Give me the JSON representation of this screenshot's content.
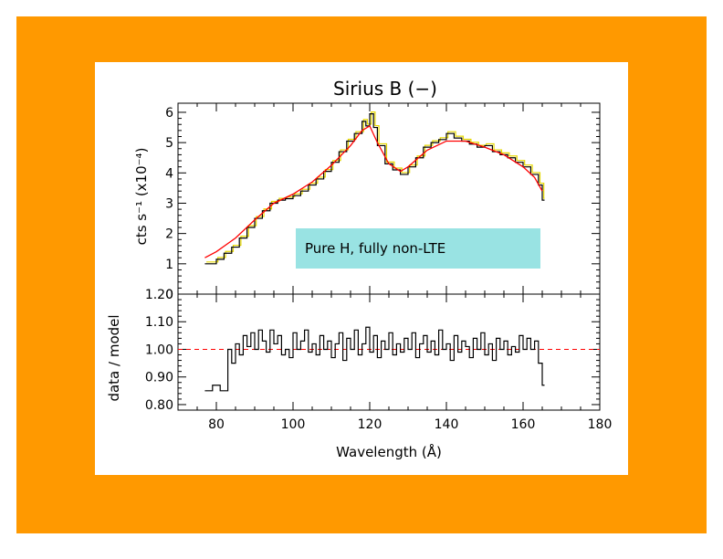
{
  "colors": {
    "frame": "#FF9900",
    "model": "#FF0000",
    "data": "#000000",
    "yellow": "#E6D800",
    "annotation_bg": "#99E3E3"
  },
  "chart_data": [
    {
      "type": "line",
      "title": "Sirius B    (−)",
      "xlabel": "",
      "ylabel": "cts s⁻¹ (x10⁻⁴)",
      "xlim": [
        70,
        180
      ],
      "ylim": [
        0,
        6.3
      ],
      "yticks": [
        "0",
        "1",
        "2",
        "3",
        "4",
        "5",
        "6"
      ],
      "annotation": "Pure H, fully non-LTE",
      "series": [
        {
          "style": "black-step",
          "x": [
            77,
            80,
            82,
            84,
            86,
            88,
            90,
            92,
            94,
            96,
            98,
            100,
            102,
            104,
            106,
            108,
            110,
            112,
            114,
            116,
            118,
            119,
            120,
            121,
            122,
            124,
            126,
            128,
            130,
            132,
            134,
            136,
            138,
            140,
            142,
            144,
            146,
            148,
            150,
            152,
            154,
            156,
            158,
            160,
            162,
            164,
            165
          ],
          "y": [
            1.0,
            1.15,
            1.35,
            1.55,
            1.85,
            2.2,
            2.5,
            2.75,
            3.0,
            3.1,
            3.15,
            3.25,
            3.4,
            3.6,
            3.8,
            4.05,
            4.35,
            4.7,
            5.05,
            5.3,
            5.7,
            5.55,
            5.95,
            5.5,
            4.9,
            4.3,
            4.1,
            3.95,
            4.2,
            4.5,
            4.85,
            5.0,
            5.1,
            5.3,
            5.15,
            5.05,
            4.95,
            4.85,
            4.9,
            4.7,
            4.6,
            4.5,
            4.35,
            4.2,
            3.95,
            3.6,
            3.1
          ]
        },
        {
          "style": "red-model",
          "x": [
            77,
            80,
            85,
            90,
            95,
            100,
            105,
            110,
            115,
            118,
            120,
            122,
            125,
            128,
            130,
            135,
            140,
            145,
            150,
            155,
            160,
            163,
            165
          ],
          "y": [
            1.2,
            1.4,
            1.85,
            2.45,
            3.0,
            3.3,
            3.7,
            4.25,
            4.9,
            5.4,
            5.55,
            5.0,
            4.3,
            4.05,
            4.2,
            4.75,
            5.05,
            5.05,
            4.85,
            4.6,
            4.2,
            3.85,
            3.4
          ]
        }
      ]
    },
    {
      "type": "line",
      "xlabel": "Wavelength (Å)",
      "ylabel": "data / model",
      "xlim": [
        70,
        180
      ],
      "ylim": [
        0.78,
        1.2
      ],
      "xticks": [
        "80",
        "100",
        "120",
        "140",
        "160",
        "180"
      ],
      "yticks": [
        "0.80",
        "0.90",
        "1.00",
        "1.10",
        "1.20"
      ],
      "reference_line": 1.0,
      "series": [
        {
          "style": "black-step",
          "x": [
            77,
            79,
            81,
            83,
            84,
            85,
            86,
            87,
            88,
            89,
            90,
            91,
            92,
            93,
            94,
            95,
            96,
            97,
            98,
            99,
            100,
            101,
            102,
            103,
            104,
            105,
            106,
            107,
            108,
            109,
            110,
            111,
            112,
            113,
            114,
            115,
            116,
            117,
            118,
            119,
            120,
            121,
            122,
            123,
            124,
            125,
            126,
            127,
            128,
            129,
            130,
            131,
            132,
            133,
            134,
            135,
            136,
            137,
            138,
            139,
            140,
            141,
            142,
            143,
            144,
            145,
            146,
            147,
            148,
            149,
            150,
            151,
            152,
            153,
            154,
            155,
            156,
            157,
            158,
            159,
            160,
            161,
            162,
            163,
            164,
            165
          ],
          "y": [
            0.85,
            0.87,
            0.85,
            1.0,
            0.95,
            1.02,
            0.98,
            1.05,
            1.01,
            1.06,
            1.0,
            1.07,
            1.03,
            0.99,
            1.07,
            1.02,
            1.05,
            0.98,
            1.0,
            0.97,
            1.06,
            1.0,
            1.03,
            1.07,
            0.99,
            1.02,
            0.98,
            1.05,
            1.0,
            1.03,
            0.97,
            1.02,
            1.06,
            0.96,
            1.04,
            1.0,
            1.07,
            0.98,
            1.02,
            1.08,
            0.99,
            1.05,
            0.97,
            1.03,
            1.0,
            1.06,
            0.98,
            1.02,
            0.99,
            1.04,
            1.0,
            1.06,
            0.97,
            1.02,
            1.05,
            0.99,
            1.03,
            0.98,
            1.07,
            1.0,
            1.02,
            0.96,
            1.05,
            0.99,
            1.03,
            1.01,
            0.97,
            1.04,
            1.0,
            1.06,
            0.98,
            1.02,
            0.96,
            1.04,
            1.0,
            1.03,
            0.98,
            1.01,
            0.99,
            1.05,
            1.0,
            1.04,
            1.0,
            1.03,
            0.95,
            0.87
          ]
        }
      ]
    }
  ]
}
